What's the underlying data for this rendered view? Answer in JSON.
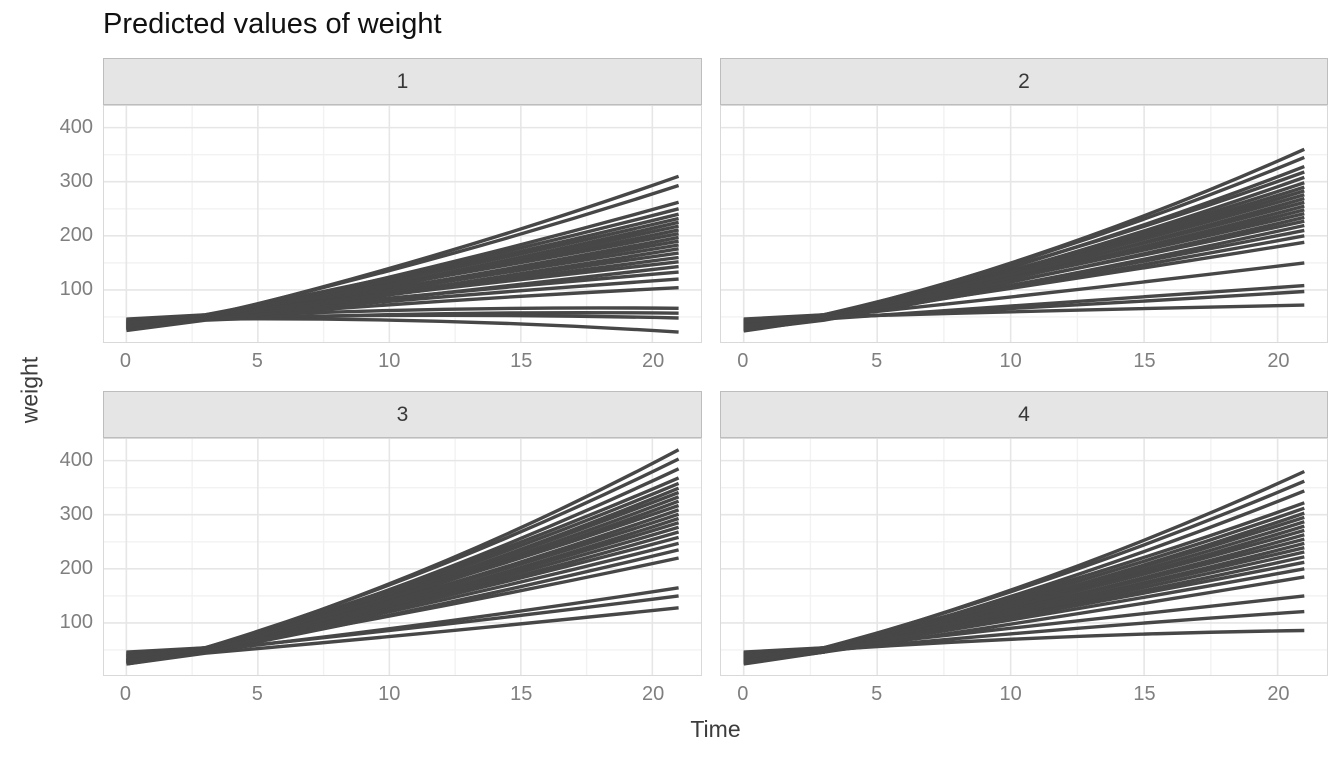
{
  "chart_data": {
    "type": "line",
    "title": "Predicted values of weight",
    "xlabel": "Time",
    "ylabel": "weight",
    "x_ticks": [
      0,
      5,
      10,
      15,
      20
    ],
    "x_minor_ticks": [
      2.5,
      7.5,
      12.5,
      17.5
    ],
    "y_ticks": [
      100,
      200,
      300,
      400
    ],
    "y_minor_ticks": [
      50,
      150,
      250,
      350
    ],
    "xlim": [
      -0.85,
      21.85
    ],
    "ylim": [
      0,
      440
    ],
    "grid": true,
    "legend_position": "none",
    "layout": "2x2-facets",
    "sample_times": [
      0,
      3,
      12,
      21
    ],
    "facets": [
      {
        "label": "1",
        "lines": [
          [
            30,
            50,
            168,
            310
          ],
          [
            34,
            52,
            162,
            293
          ],
          [
            28,
            48,
            147,
            262
          ],
          [
            40,
            54,
            144,
            250
          ],
          [
            36,
            50,
            139,
            240
          ],
          [
            44,
            52,
            136,
            232
          ],
          [
            26,
            46,
            130,
            225
          ],
          [
            38,
            50,
            129,
            218
          ],
          [
            32,
            48,
            125,
            211
          ],
          [
            46,
            54,
            125,
            204
          ],
          [
            30,
            46,
            118,
            197
          ],
          [
            42,
            52,
            118,
            190
          ],
          [
            35,
            49,
            114,
            183
          ],
          [
            27,
            45,
            108,
            176
          ],
          [
            39,
            51,
            108,
            168
          ],
          [
            33,
            47,
            103,
            160
          ],
          [
            45,
            53,
            102,
            152
          ],
          [
            29,
            45,
            94,
            143
          ],
          [
            41,
            51,
            94,
            133
          ],
          [
            37,
            49,
            87,
            120
          ],
          [
            31,
            47,
            79,
            104
          ],
          [
            43,
            50,
            64,
            66
          ],
          [
            25,
            44,
            56,
            57
          ],
          [
            36,
            48,
            53,
            48
          ],
          [
            40,
            46,
            42,
            22
          ]
        ]
      },
      {
        "label": "2",
        "lines": [
          [
            28,
            50,
            183,
            360
          ],
          [
            34,
            52,
            180,
            345
          ],
          [
            30,
            48,
            172,
            328
          ],
          [
            40,
            54,
            172,
            318
          ],
          [
            26,
            46,
            164,
            308
          ],
          [
            38,
            52,
            163,
            298
          ],
          [
            44,
            50,
            160,
            290
          ],
          [
            32,
            48,
            157,
            283
          ],
          [
            36,
            52,
            156,
            276
          ],
          [
            24,
            46,
            150,
            269
          ],
          [
            42,
            54,
            151,
            262
          ],
          [
            28,
            48,
            145,
            255
          ],
          [
            34,
            50,
            143,
            248
          ],
          [
            46,
            54,
            142,
            241
          ],
          [
            30,
            46,
            135,
            234
          ],
          [
            38,
            52,
            135,
            227
          ],
          [
            26,
            44,
            127,
            219
          ],
          [
            44,
            50,
            126,
            210
          ],
          [
            32,
            48,
            121,
            200
          ],
          [
            36,
            52,
            118,
            188
          ],
          [
            40,
            50,
            98,
            150
          ],
          [
            28,
            46,
            76,
            108
          ],
          [
            34,
            48,
            71,
            97
          ],
          [
            42,
            50,
            62,
            72
          ]
        ]
      },
      {
        "label": "3",
        "lines": [
          [
            30,
            52,
            212,
            420
          ],
          [
            36,
            54,
            208,
            403
          ],
          [
            26,
            48,
            198,
            385
          ],
          [
            40,
            54,
            195,
            368
          ],
          [
            32,
            50,
            190,
            358
          ],
          [
            28,
            46,
            184,
            349
          ],
          [
            44,
            52,
            184,
            341
          ],
          [
            34,
            50,
            179,
            333
          ],
          [
            24,
            46,
            174,
            325
          ],
          [
            42,
            54,
            175,
            317
          ],
          [
            30,
            48,
            168,
            309
          ],
          [
            38,
            52,
            166,
            301
          ],
          [
            26,
            46,
            160,
            293
          ],
          [
            46,
            54,
            160,
            285
          ],
          [
            32,
            50,
            155,
            277
          ],
          [
            36,
            48,
            150,
            268
          ],
          [
            28,
            52,
            148,
            258
          ],
          [
            44,
            50,
            142,
            247
          ],
          [
            34,
            46,
            135,
            235
          ],
          [
            40,
            52,
            131,
            220
          ],
          [
            30,
            48,
            102,
            165
          ],
          [
            38,
            50,
            97,
            150
          ],
          [
            24,
            44,
            84,
            128
          ]
        ]
      },
      {
        "label": "4",
        "lines": [
          [
            30,
            52,
            196,
            380
          ],
          [
            36,
            54,
            191,
            362
          ],
          [
            26,
            48,
            181,
            344
          ],
          [
            40,
            54,
            175,
            322
          ],
          [
            32,
            50,
            169,
            312
          ],
          [
            28,
            46,
            163,
            303
          ],
          [
            44,
            52,
            163,
            295
          ],
          [
            34,
            50,
            158,
            287
          ],
          [
            24,
            46,
            153,
            279
          ],
          [
            42,
            54,
            153,
            271
          ],
          [
            30,
            48,
            147,
            263
          ],
          [
            38,
            52,
            146,
            255
          ],
          [
            26,
            46,
            140,
            247
          ],
          [
            46,
            54,
            140,
            239
          ],
          [
            32,
            50,
            135,
            231
          ],
          [
            36,
            48,
            130,
            222
          ],
          [
            28,
            52,
            128,
            212
          ],
          [
            44,
            50,
            122,
            200
          ],
          [
            34,
            46,
            113,
            185
          ],
          [
            40,
            52,
            101,
            150
          ],
          [
            30,
            48,
            88,
            121
          ],
          [
            38,
            50,
            74,
            86
          ]
        ]
      }
    ],
    "colors": {
      "line": "#474747",
      "strip_bg": "#e5e5e5",
      "strip_border": "#bdbdbd",
      "panel_border": "#d9d9d9",
      "grid_major": "#e6e6e6",
      "grid_minor": "#f2f2f2",
      "tick_text": "#7f7f7f",
      "axis_title_text": "#3c3c3c",
      "title_text": "#111111"
    }
  }
}
